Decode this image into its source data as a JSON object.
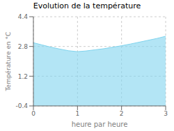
{
  "chart_data": {
    "type": "area",
    "title": "Evolution de la température",
    "xlabel": "heure par heure",
    "ylabel": "Température en °C",
    "x": [
      0,
      0.2,
      0.4,
      0.6,
      0.8,
      1.0,
      1.2,
      1.4,
      1.6,
      1.8,
      2.0,
      2.2,
      2.4,
      2.6,
      2.8,
      3.0
    ],
    "values": [
      3.0,
      2.88,
      2.76,
      2.66,
      2.57,
      2.52,
      2.56,
      2.62,
      2.68,
      2.76,
      2.84,
      2.93,
      3.03,
      3.13,
      3.23,
      3.35
    ],
    "xlim": [
      0,
      3
    ],
    "ylim": [
      -0.4,
      4.4
    ],
    "xticks": [
      0,
      1,
      2,
      3
    ],
    "yticks": [
      -0.4,
      1.2,
      2.8,
      4.4
    ],
    "color": "#80d4ee",
    "grid": true
  }
}
